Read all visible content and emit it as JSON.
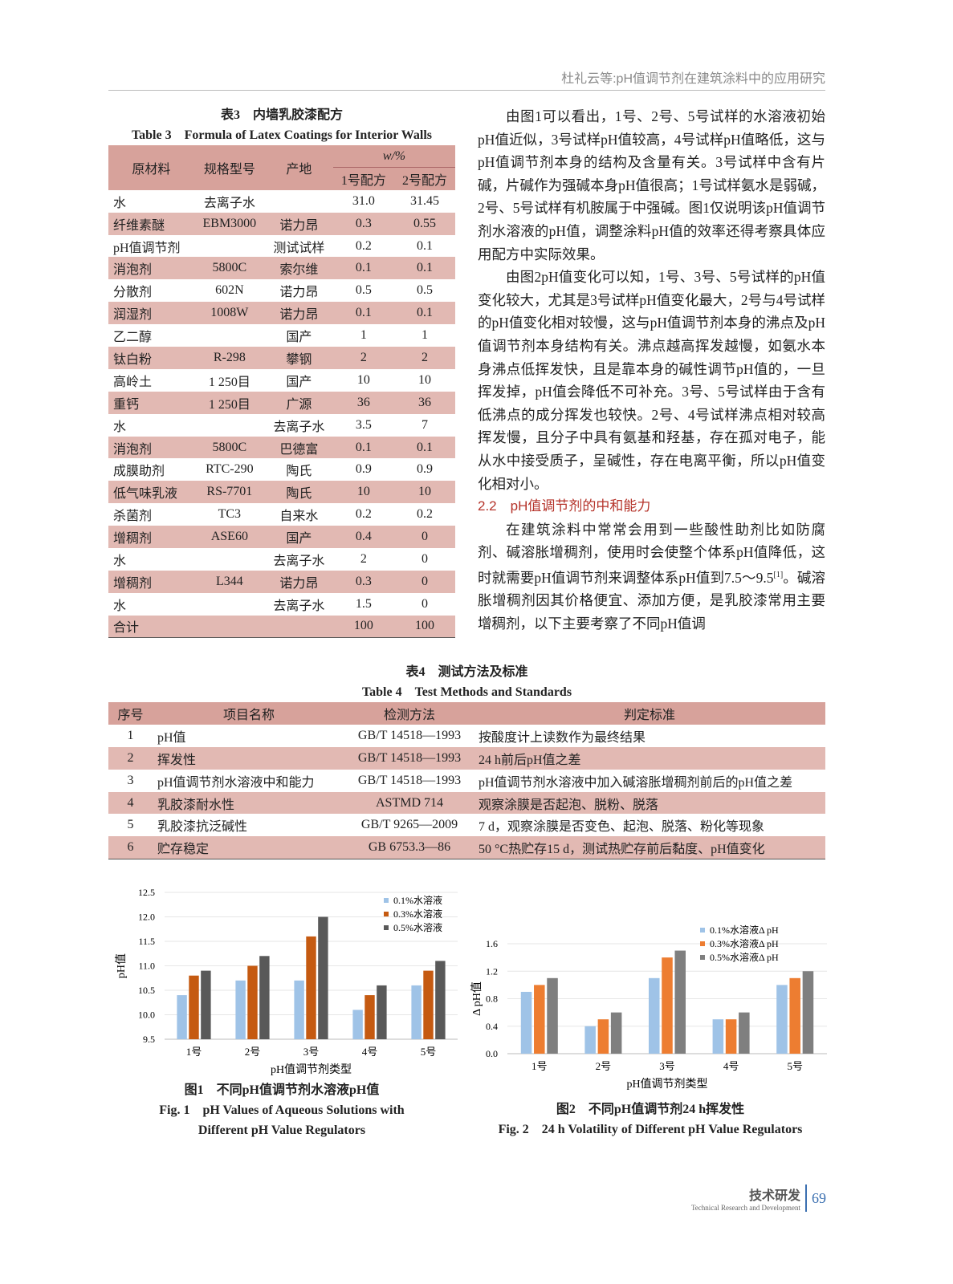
{
  "running_header": "杜礼云等:pH值调节剂在建筑涂料中的应用研究",
  "table3": {
    "title_cn": "表3　内墙乳胶漆配方",
    "title_en": "Table 3　Formula of Latex Coatings for Interior Walls",
    "headers": [
      "原材料",
      "规格型号",
      "产地",
      "w/%",
      "1号配方",
      "2号配方"
    ],
    "rows": [
      [
        "水",
        "去离子水",
        "",
        "31.0",
        "31.45"
      ],
      [
        "纤维素醚",
        "EBM3000",
        "诺力昂",
        "0.3",
        "0.55"
      ],
      [
        "pH值调节剂",
        "",
        "测试试样",
        "0.2",
        "0.1"
      ],
      [
        "消泡剂",
        "5800C",
        "索尔维",
        "0.1",
        "0.1"
      ],
      [
        "分散剂",
        "602N",
        "诺力昂",
        "0.5",
        "0.5"
      ],
      [
        "润湿剂",
        "1008W",
        "诺力昂",
        "0.1",
        "0.1"
      ],
      [
        "乙二醇",
        "",
        "国产",
        "1",
        "1"
      ],
      [
        "钛白粉",
        "R-298",
        "攀钢",
        "2",
        "2"
      ],
      [
        "高岭土",
        "1 250目",
        "国产",
        "10",
        "10"
      ],
      [
        "重钙",
        "1 250目",
        "广源",
        "36",
        "36"
      ],
      [
        "水",
        "",
        "去离子水",
        "3.5",
        "7"
      ],
      [
        "消泡剂",
        "5800C",
        "巴德富",
        "0.1",
        "0.1"
      ],
      [
        "成膜助剂",
        "RTC-290",
        "陶氏",
        "0.9",
        "0.9"
      ],
      [
        "低气味乳液",
        "RS-7701",
        "陶氏",
        "10",
        "10"
      ],
      [
        "杀菌剂",
        "TC3",
        "自来水",
        "0.2",
        "0.2"
      ],
      [
        "增稠剂",
        "ASE60",
        "国产",
        "0.4",
        "0"
      ],
      [
        "水",
        "",
        "去离子水",
        "2",
        "0"
      ],
      [
        "增稠剂",
        "L344",
        "诺力昂",
        "0.3",
        "0"
      ],
      [
        "水",
        "",
        "去离子水",
        "1.5",
        "0"
      ],
      [
        "合计",
        "",
        "",
        "100",
        "100"
      ]
    ]
  },
  "body": {
    "p1": "由图1可以看出，1号、2号、5号试样的水溶液初始pH值近似，3号试样pH值较高，4号试样pH值略低，这与pH值调节剂本身的结构及含量有关。3号试样中含有片碱，片碱作为强碱本身pH值很高；1号试样氨水是弱碱，2号、5号试样有机胺属于中强碱。图1仅说明该pH值调节剂水溶液的pH值，调整涂料pH值的效率还得考察具体应用配方中实际效果。",
    "p2": "由图2pH值变化可以知，1号、3号、5号试样的pH值变化较大，尤其是3号试样pH值变化最大，2号与4号试样的pH值变化相对较慢，这与pH值调节剂本身的沸点及pH值调节剂本身结构有关。沸点越高挥发越慢，如氨水本身沸点低挥发快，且是靠本身的碱性调节pH值的，一旦挥发掉，pH值会降低不可补充。3号、5号试样由于含有低沸点的成分挥发也较快。2号、4号试样沸点相对较高挥发慢，且分子中具有氨基和羟基，存在孤对电子，能从水中接受质子，呈碱性，存在电离平衡，所以pH值变化相对小。",
    "section": "2.2　pH值调节剂的中和能力",
    "p3a": "在建筑涂料中常常会用到一些酸性助剂比如防腐剂、碱溶胀增稠剂，使用时会使整个体系pH值降低，这时就需要pH值调节剂来调整体系pH值到7.5～9.5",
    "p3ref": "[1]",
    "p3b": "。碱溶胀增稠剂因其价格便宜、添加方便，是乳胶漆常用主要增稠剂，以下主要考察了不同pH值调"
  },
  "table4": {
    "title_cn": "表4　测试方法及标准",
    "title_en": "Table 4　Test Methods and Standards",
    "headers": [
      "序号",
      "项目名称",
      "检测方法",
      "判定标准"
    ],
    "rows": [
      [
        "1",
        "pH值",
        "GB/T 14518—1993",
        "按酸度计上读数作为最终结果"
      ],
      [
        "2",
        "挥发性",
        "GB/T 14518—1993",
        "24 h前后pH值之差"
      ],
      [
        "3",
        "pH值调节剂水溶液中和能力",
        "GB/T 14518—1993",
        "pH值调节剂水溶液中加入碱溶胀增稠剂前后的pH值之差"
      ],
      [
        "4",
        "乳胶漆耐水性",
        "ASTMD 714",
        "观察涂膜是否起泡、脱粉、脱落"
      ],
      [
        "5",
        "乳胶漆抗泛碱性",
        "GB/T 9265—2009",
        "7 d，观察涂膜是否变色、起泡、脱落、粉化等现象"
      ],
      [
        "6",
        "贮存稳定",
        "GB 6753.3—86",
        "50 °C热贮存15 d，测试热贮存前后黏度、pH值变化"
      ]
    ]
  },
  "colors": {
    "header_row": "#d7a29b",
    "stripe_row": "#e2b9b3",
    "section": "#b5332a",
    "s1": "#9fc3e7",
    "s2f1": "#c55a11",
    "s2f2": "#ed7d31",
    "s3f1": "#595959",
    "s3f2": "#7f7f7f"
  },
  "chart_data": [
    {
      "type": "bar",
      "caption_cn": "图1　不同pH值调节剂水溶液pH值",
      "caption_en": "Fig. 1　pH Values of Aqueous Solutions with Different pH Value Regulators",
      "xlabel": "pH值调节剂类型",
      "ylabel": "pH值",
      "ylim": [
        9.5,
        12.5
      ],
      "yticks": [
        "9.5",
        "10.0",
        "10.5",
        "11.0",
        "11.5",
        "12.0",
        "12.5"
      ],
      "categories": [
        "1号",
        "2号",
        "3号",
        "4号",
        "5号"
      ],
      "legend": "top-right",
      "grid": true,
      "series": [
        {
          "name": "0.1%水溶液",
          "values": [
            10.4,
            10.7,
            10.7,
            10.1,
            10.6
          ]
        },
        {
          "name": "0.3%水溶液",
          "values": [
            10.8,
            11.0,
            11.6,
            10.4,
            10.9
          ]
        },
        {
          "name": "0.5%水溶液",
          "values": [
            10.9,
            11.2,
            12.0,
            10.6,
            11.1
          ]
        }
      ]
    },
    {
      "type": "bar",
      "caption_cn": "图2　不同pH值调节剂24 h挥发性",
      "caption_en": "Fig. 2　24 h Volatility of Different pH Value Regulators",
      "xlabel": "pH值调节剂类型",
      "ylabel": "Δ pH值",
      "ylim": [
        0,
        1.6
      ],
      "yticks": [
        "0.0",
        "0.4",
        "0.8",
        "1.2",
        "1.6"
      ],
      "categories": [
        "1号",
        "2号",
        "3号",
        "4号",
        "5号"
      ],
      "legend": "top-right",
      "grid": true,
      "series": [
        {
          "name": "0.1%水溶液Δ pH",
          "values": [
            0.9,
            0.4,
            1.1,
            0.5,
            1.0
          ]
        },
        {
          "name": "0.3%水溶液Δ pH",
          "values": [
            1.0,
            0.5,
            1.4,
            0.5,
            1.1
          ]
        },
        {
          "name": "0.5%水溶液Δ pH",
          "values": [
            1.1,
            0.6,
            1.5,
            0.6,
            1.2
          ]
        }
      ]
    }
  ],
  "footer": {
    "section_cn": "技术研发",
    "section_en": "Technical Research and Development",
    "page": "69"
  }
}
